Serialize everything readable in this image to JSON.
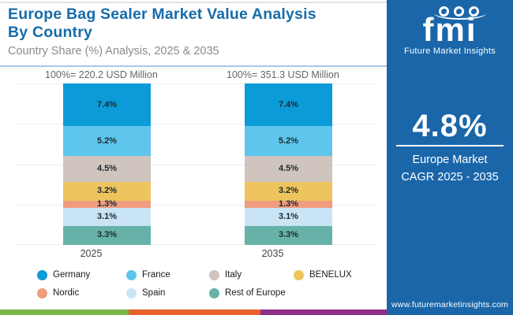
{
  "header": {
    "title": "Europe Bag Sealer Market Value Analysis\nBy Country",
    "subtitle": "Country Share (%) Analysis, 2025 & 2035"
  },
  "chart_data": {
    "type": "bar",
    "stacked": true,
    "categories": [
      "2025",
      "2035"
    ],
    "series": [
      {
        "name": "Germany",
        "color": "#0B9BD8",
        "values": [
          7.4,
          7.4
        ]
      },
      {
        "name": "France",
        "color": "#5EC5EC",
        "values": [
          5.2,
          5.2
        ]
      },
      {
        "name": "Italy",
        "color": "#D0C4BE",
        "values": [
          4.5,
          4.5
        ]
      },
      {
        "name": "BENELUX",
        "color": "#EDC45E",
        "values": [
          3.2,
          3.2
        ]
      },
      {
        "name": "Nordic",
        "color": "#EF9C80",
        "values": [
          1.3,
          1.3
        ]
      },
      {
        "name": "Spain",
        "color": "#C9E5F5",
        "values": [
          3.1,
          3.1
        ]
      },
      {
        "name": "Rest of Europe",
        "color": "#67B2A8",
        "values": [
          3.3,
          3.3
        ]
      }
    ],
    "totals": [
      "100%= 220.2 USD Million",
      "100%= 351.3 USD Million"
    ],
    "value_suffix": "%",
    "grid": true,
    "legend_position": "bottom"
  },
  "sidebar": {
    "logo_text": "fmi",
    "logo_subtext": "Future Market Insights",
    "cagr_value": "4.8%",
    "cagr_label": "Europe Market\nCAGR 2025 - 2035",
    "website": "www.futuremarketinsights.com",
    "bg_color": "#1A66A9"
  },
  "footer_stripe_colors": [
    "#7AB648",
    "#E8622B",
    "#8E2E87"
  ],
  "accent_colors": {
    "title": "#176CA9",
    "separator": "#AAC9E4",
    "gridline": "#ECECEC"
  }
}
